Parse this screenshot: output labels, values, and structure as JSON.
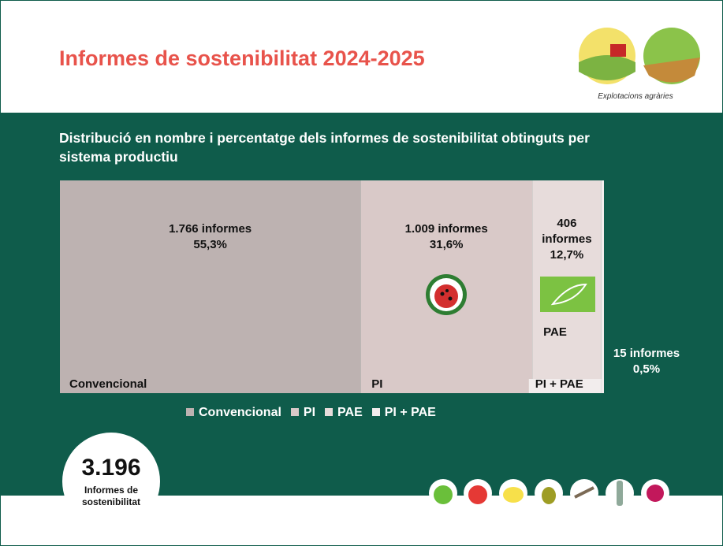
{
  "title": "Informes de sostenibilitat 2024-2025",
  "brand": "Explotacions agràries",
  "chart_data": {
    "type": "mosaic",
    "title": "Distribució en nombre i percentatge dels informes de sostenibilitat obtinguts per sistema productiu",
    "categories": [
      "Convencional",
      "PI",
      "PAE",
      "PI + PAE"
    ],
    "values": [
      1766,
      1009,
      406,
      15
    ],
    "value_labels": [
      "1.766 informes",
      "1.009 informes",
      "406 informes",
      "15 informes"
    ],
    "percents": [
      55.3,
      31.6,
      12.7,
      0.5
    ],
    "percent_labels": [
      "55,3%",
      "31,6%",
      "12,7%",
      "0,5%"
    ],
    "colors": [
      "#bdb2b1",
      "#d9c9c8",
      "#e7dcdb",
      "#f2eded"
    ],
    "total": 3196,
    "total_label": "3.196",
    "total_caption": "Informes de sostenibilitat"
  }
}
